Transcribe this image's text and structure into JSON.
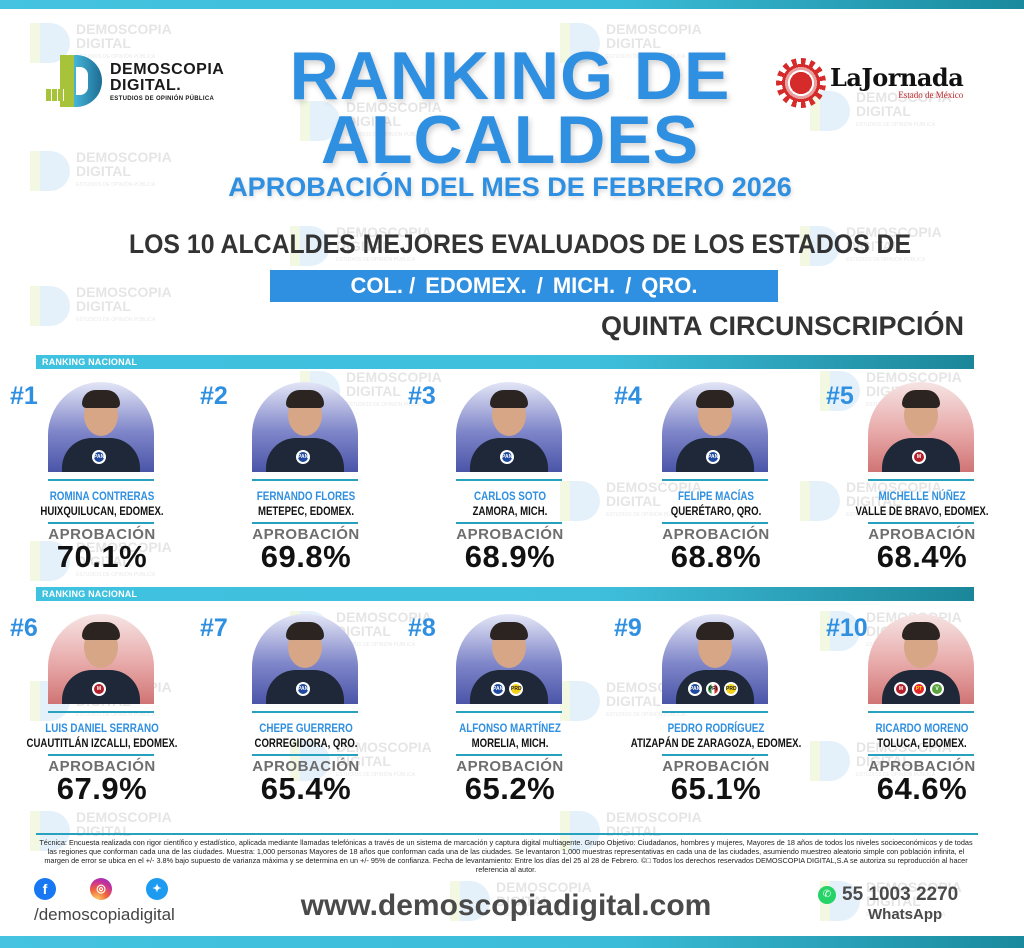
{
  "header": {
    "brand_logo": {
      "line1": "DEMOSCOPIA",
      "line2": "DIGITAL.",
      "tagline": "ESTUDIOS DE OPINIÓN PÚBLICA"
    },
    "partner_logo": {
      "name": "LaJornada",
      "edition": "Estado de México"
    },
    "title_line1": "RANKING DE",
    "title_line2": "ALCALDES",
    "subtitle": "APROBACIÓN DEL MES DE FEBRERO 2026",
    "headline": "LOS 10 ALCALDES MEJORES EVALUADOS DE LOS ESTADOS DE",
    "states": [
      "COL. /",
      "EDOMEX.",
      "/",
      "MICH.",
      "/",
      "QRO."
    ],
    "circumscription": "QUINTA CIRCUNSCRIPCIÓN"
  },
  "watermark": {
    "line1": "DEMOSCOPIA",
    "line2": "DIGITAL",
    "line3": "ESTUDIOS DE OPINIÓN PÚBLICA"
  },
  "section_label": "RANKING NACIONAL",
  "approval_label": "APROBACIÓN",
  "colors": {
    "accent_blue": "#2f8fe0",
    "teal_bar": "#3fc2e0",
    "pan_blue": "#1f4aa0",
    "morena_red": "#b3202b"
  },
  "rankings": [
    {
      "rank": "#1",
      "name": "ROMINA CONTRERAS",
      "city": "HUIXQUILUCAN, EDOMEX.",
      "approval": "70.1%",
      "bg": "blue",
      "parties": [
        "PAN"
      ]
    },
    {
      "rank": "#2",
      "name": "FERNANDO FLORES",
      "city": "METEPEC, EDOMEX.",
      "approval": "69.8%",
      "bg": "blue",
      "parties": [
        "PAN"
      ]
    },
    {
      "rank": "#3",
      "name": "CARLOS SOTO",
      "city": "ZAMORA, MICH.",
      "approval": "68.9%",
      "bg": "blue",
      "parties": [
        "PAN"
      ]
    },
    {
      "rank": "#4",
      "name": "FELIPE MACÍAS",
      "city": "QUERÉTARO, QRO.",
      "approval": "68.8%",
      "bg": "blue",
      "parties": [
        "PAN"
      ]
    },
    {
      "rank": "#5",
      "name": "MICHELLE NÚÑEZ",
      "city": "VALLE DE BRAVO, EDOMEX.",
      "approval": "68.4%",
      "bg": "red",
      "parties": [
        "MORENA"
      ]
    },
    {
      "rank": "#6",
      "name": "LUIS DANIEL SERRANO",
      "city": "CUAUTITLÁN IZCALLI, EDOMEX.",
      "approval": "67.9%",
      "bg": "red",
      "parties": [
        "MORENA"
      ]
    },
    {
      "rank": "#7",
      "name": "CHEPE GUERRERO",
      "city": "CORREGIDORA, QRO.",
      "approval": "65.4%",
      "bg": "blue",
      "parties": [
        "PAN"
      ]
    },
    {
      "rank": "#8",
      "name": "ALFONSO MARTÍNEZ",
      "city": "MORELIA, MICH.",
      "approval": "65.2%",
      "bg": "blue",
      "parties": [
        "PAN",
        "PRD"
      ]
    },
    {
      "rank": "#9",
      "name": "PEDRO RODRÍGUEZ",
      "city": "ATIZAPÁN DE ZARAGOZA, EDOMEX.",
      "approval": "65.1%",
      "bg": "blue",
      "parties": [
        "PAN",
        "PRI",
        "PRD"
      ]
    },
    {
      "rank": "#10",
      "name": "RICARDO MORENO",
      "city": "TOLUCA, EDOMEX.",
      "approval": "64.6%",
      "bg": "red",
      "parties": [
        "MORENA",
        "PT",
        "PVEM"
      ]
    }
  ],
  "footer": {
    "technique": "Técnica: Encuesta realizada con rigor científico y estadístico, aplicada mediante llamadas telefónicas a través de un sistema de marcación y captura digital multiagente. Grupo Objetivo: Ciudadanos, hombres y mujeres, Mayores de 18 años de todos los niveles socioeconómicos y de todas las regiones que conforman cada una de las ciudades. Muestra: 1,000 personas Mayores de 18 años que conforman cada una de las ciudades. Se levantaron 1,000 muestras representativas en cada una de las ciudades, asumiendo muestreo aleatorio simple con población infinita, el margen de error se ubica en el +/- 3.8% bajo supuesto de varianza máxima y se determina en un +/- 95% de confianza. Fecha de levantamiento: Entre los días del 25 al 28 de Febrero. ©□ Todos los derechos reservados DEMOSCOPIA DIGITAL,S.A se autoriza su reproducción al hacer referencia al autor.",
    "social_icons": [
      "facebook-icon",
      "instagram-icon",
      "twitter-icon"
    ],
    "social_handle": "/demoscopiadigital",
    "website": "www.demoscopiadigital.com",
    "phone": "55 1003 2270",
    "phone_label": "WhatsApp"
  }
}
